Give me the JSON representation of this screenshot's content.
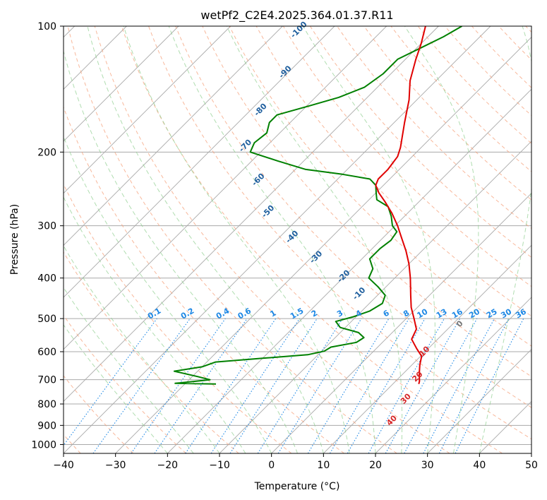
{
  "chart_data": {
    "type": "skew-t log-p",
    "title": "wetPf2_C2E4.2025.364.01.37.R11",
    "xlabel": "Temperature (°C)",
    "ylabel": "Pressure (hPa)",
    "xlim": [
      -40,
      50
    ],
    "ylim": [
      1050,
      100
    ],
    "y_scale": "log",
    "x_ticks": [
      "−40",
      "−30",
      "−20",
      "−10",
      "0",
      "10",
      "20",
      "30",
      "40",
      "50"
    ],
    "y_ticks": [
      "100",
      "200",
      "300",
      "400",
      "500",
      "600",
      "700",
      "800",
      "900",
      "1000"
    ],
    "grid": true,
    "colors": {
      "temperature": "#e00000",
      "dewpoint": "#008000",
      "isotherm": "#a9a9a9",
      "dry_adiabat": "#f5a07a",
      "moist_adiabat": "#8fcf8f",
      "mixing_ratio": "#1e88e5",
      "reference": "#d2b48c"
    },
    "temperature_profile": {
      "name": "Temperature",
      "points": [
        {
          "p": 717,
          "t": 15.0
        },
        {
          "p": 706,
          "t": 14.6
        },
        {
          "p": 675,
          "t": 13.0
        },
        {
          "p": 645,
          "t": 11.5
        },
        {
          "p": 615,
          "t": 10.2
        },
        {
          "p": 590,
          "t": 7.8
        },
        {
          "p": 560,
          "t": 5.0
        },
        {
          "p": 530,
          "t": 4.0
        },
        {
          "p": 500,
          "t": 1.5
        },
        {
          "p": 470,
          "t": -1.2
        },
        {
          "p": 440,
          "t": -3.6
        },
        {
          "p": 400,
          "t": -7.0
        },
        {
          "p": 370,
          "t": -10.0
        },
        {
          "p": 345,
          "t": -13.0
        },
        {
          "p": 320,
          "t": -16.5
        },
        {
          "p": 300,
          "t": -19.5
        },
        {
          "p": 280,
          "t": -23.0
        },
        {
          "p": 263,
          "t": -26.5
        },
        {
          "p": 250,
          "t": -29.5
        },
        {
          "p": 240,
          "t": -31.5
        },
        {
          "p": 232,
          "t": -32.2
        },
        {
          "p": 220,
          "t": -32.2
        },
        {
          "p": 205,
          "t": -32.8
        },
        {
          "p": 195,
          "t": -34.0
        },
        {
          "p": 170,
          "t": -38.0
        },
        {
          "p": 150,
          "t": -41.5
        },
        {
          "p": 135,
          "t": -45.0
        },
        {
          "p": 120,
          "t": -48.0
        },
        {
          "p": 110,
          "t": -50.0
        },
        {
          "p": 100,
          "t": -52.5
        }
      ]
    },
    "dewpoint_profile": {
      "name": "Dewpoint",
      "points": [
        {
          "p": 717,
          "t": -24.0
        },
        {
          "p": 714,
          "t": -32.0
        },
        {
          "p": 700,
          "t": -26.0
        },
        {
          "p": 688,
          "t": -29.0
        },
        {
          "p": 668,
          "t": -34.5
        },
        {
          "p": 652,
          "t": -30.0
        },
        {
          "p": 635,
          "t": -28.3
        },
        {
          "p": 622,
          "t": -20.0
        },
        {
          "p": 610,
          "t": -12.0
        },
        {
          "p": 598,
          "t": -9.5
        },
        {
          "p": 585,
          "t": -9.0
        },
        {
          "p": 570,
          "t": -5.0
        },
        {
          "p": 555,
          "t": -4.5
        },
        {
          "p": 540,
          "t": -6.5
        },
        {
          "p": 525,
          "t": -11.0
        },
        {
          "p": 508,
          "t": -13.0
        },
        {
          "p": 495,
          "t": -10.5
        },
        {
          "p": 480,
          "t": -8.5
        },
        {
          "p": 460,
          "t": -7.5
        },
        {
          "p": 440,
          "t": -8.5
        },
        {
          "p": 420,
          "t": -11.5
        },
        {
          "p": 400,
          "t": -15.0
        },
        {
          "p": 380,
          "t": -16.0
        },
        {
          "p": 360,
          "t": -18.5
        },
        {
          "p": 340,
          "t": -18.5
        },
        {
          "p": 325,
          "t": -18.0
        },
        {
          "p": 310,
          "t": -18.5
        },
        {
          "p": 300,
          "t": -20.5
        },
        {
          "p": 285,
          "t": -22.5
        },
        {
          "p": 270,
          "t": -25.0
        },
        {
          "p": 260,
          "t": -28.5
        },
        {
          "p": 250,
          "t": -30.0
        },
        {
          "p": 240,
          "t": -31.5
        },
        {
          "p": 232,
          "t": -33.8
        },
        {
          "p": 226,
          "t": -40.0
        },
        {
          "p": 220,
          "t": -48.0
        },
        {
          "p": 210,
          "t": -55.0
        },
        {
          "p": 200,
          "t": -62.0
        },
        {
          "p": 190,
          "t": -63.0
        },
        {
          "p": 180,
          "t": -62.5
        },
        {
          "p": 170,
          "t": -64.0
        },
        {
          "p": 163,
          "t": -64.0
        },
        {
          "p": 155,
          "t": -59.5
        },
        {
          "p": 148,
          "t": -55.5
        },
        {
          "p": 140,
          "t": -52.5
        },
        {
          "p": 130,
          "t": -51.5
        },
        {
          "p": 120,
          "t": -51.5
        },
        {
          "p": 112,
          "t": -49.0
        },
        {
          "p": 106,
          "t": -47.0
        },
        {
          "p": 100,
          "t": -45.5
        }
      ]
    },
    "mixing_ratio_labels": [
      "0.1",
      "0.2",
      "0.4",
      "0.6",
      "1",
      "1.5",
      "2",
      "3",
      "4",
      "6",
      "8",
      "10",
      "13",
      "16",
      "20",
      "25",
      "30",
      "36"
    ],
    "mixing_ratio_values": [
      0.1,
      0.2,
      0.4,
      0.6,
      1,
      1.5,
      2,
      3,
      4,
      6,
      8,
      10,
      13,
      16,
      20,
      25,
      30,
      36
    ],
    "dry_adiabat_labels": [
      "-100",
      "-90",
      "-80",
      "-70",
      "-60",
      "-50",
      "-40",
      "-30",
      "-20",
      "-10"
    ],
    "moist_adiabat_labels": [
      "0",
      "10",
      "20",
      "30",
      "40"
    ]
  }
}
